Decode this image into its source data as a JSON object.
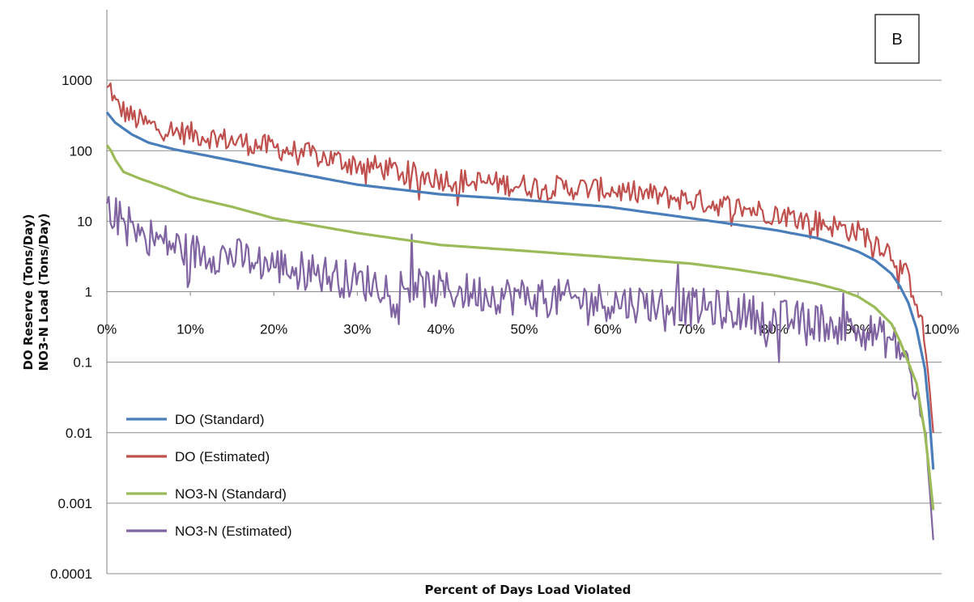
{
  "chart_data": {
    "type": "line",
    "panel_label": "B",
    "xlabel": "Percent of Days  Load Violated",
    "ylabel_lines": [
      "DO Reserve (Tons/Day)",
      "NO3-N Load (Tons/Day)"
    ],
    "xlim": [
      0,
      100
    ],
    "ylim": [
      0.0001,
      10000
    ],
    "y_scale": "log",
    "x_tick_labels": [
      "0%",
      "10%",
      "20%",
      "30%",
      "40%",
      "50%",
      "60%",
      "70%",
      "80%",
      "90%",
      "100%"
    ],
    "y_tick_values": [
      0.0001,
      0.001,
      0.01,
      0.1,
      1,
      10,
      100,
      1000
    ],
    "y_tick_labels": [
      "0.0001",
      "0.001",
      "0.01",
      "0.1",
      "1",
      "10",
      "100",
      "1000"
    ],
    "grid": "horizontal major",
    "legend_position": "bottom-left inside",
    "series": [
      {
        "name": "DO (Standard)",
        "color": "#4a7ebb",
        "noise": 0,
        "x": [
          0,
          1,
          3,
          5,
          8,
          12,
          20,
          30,
          40,
          50,
          60,
          70,
          80,
          85,
          88,
          90,
          92,
          94,
          95,
          96,
          97,
          98,
          98.5,
          99
        ],
        "y": [
          350,
          250,
          170,
          130,
          105,
          85,
          55,
          33,
          24,
          20,
          16,
          11,
          7.5,
          5.8,
          4.5,
          3.7,
          2.8,
          1.8,
          1.2,
          0.7,
          0.3,
          0.08,
          0.02,
          0.003
        ]
      },
      {
        "name": "DO (Estimated)",
        "color": "#c0504d",
        "noise": 0.17,
        "x": [
          0,
          0.5,
          1,
          3,
          5,
          8,
          12,
          20,
          30,
          40,
          50,
          60,
          70,
          80,
          85,
          88,
          90,
          92,
          94,
          95,
          96,
          97,
          98,
          98.5,
          99
        ],
        "y": [
          700,
          800,
          450,
          300,
          230,
          190,
          160,
          110,
          65,
          40,
          32,
          28,
          20,
          13,
          10,
          8,
          7,
          5.5,
          3.5,
          2.5,
          1.5,
          0.8,
          0.2,
          0.05,
          0.01
        ]
      },
      {
        "name": "NO3-N (Standard)",
        "color": "#9bbb59",
        "noise": 0,
        "x": [
          0,
          0.5,
          1,
          2,
          4,
          7,
          10,
          15,
          20,
          30,
          40,
          50,
          60,
          70,
          75,
          80,
          85,
          88,
          90,
          92,
          94,
          95,
          96,
          97,
          98,
          98.5,
          99
        ],
        "y": [
          120,
          100,
          75,
          50,
          40,
          30,
          22,
          16,
          11,
          6.8,
          4.6,
          3.8,
          3.1,
          2.5,
          2.1,
          1.7,
          1.3,
          1.05,
          0.85,
          0.6,
          0.35,
          0.2,
          0.1,
          0.05,
          0.01,
          0.003,
          0.0008
        ]
      },
      {
        "name": "NO3-N (Estimated)",
        "color": "#8064a2",
        "noise": 0.28,
        "x": [
          0,
          1,
          3,
          6,
          10,
          15,
          20,
          25,
          30,
          35,
          40,
          45,
          50,
          55,
          60,
          65,
          70,
          75,
          80,
          85,
          88,
          90,
          92,
          94,
          95,
          96,
          97,
          98,
          98.5,
          99
        ],
        "y": [
          16,
          12,
          8,
          5.5,
          3.7,
          3.2,
          2.4,
          1.9,
          1.4,
          1.2,
          1.05,
          0.95,
          0.85,
          0.78,
          0.72,
          0.68,
          0.6,
          0.55,
          0.42,
          0.38,
          0.32,
          0.3,
          0.25,
          0.2,
          0.15,
          0.09,
          0.03,
          0.01,
          0.002,
          0.0003
        ]
      }
    ],
    "spikes": [
      {
        "series": 3,
        "x": 36.5,
        "y": 6.5
      },
      {
        "series": 3,
        "x": 68.5,
        "y": 2.5
      },
      {
        "series": 3,
        "x": 88.2,
        "y": 0.95
      },
      {
        "series": 3,
        "x": 80.5,
        "y": 0.1
      }
    ]
  }
}
